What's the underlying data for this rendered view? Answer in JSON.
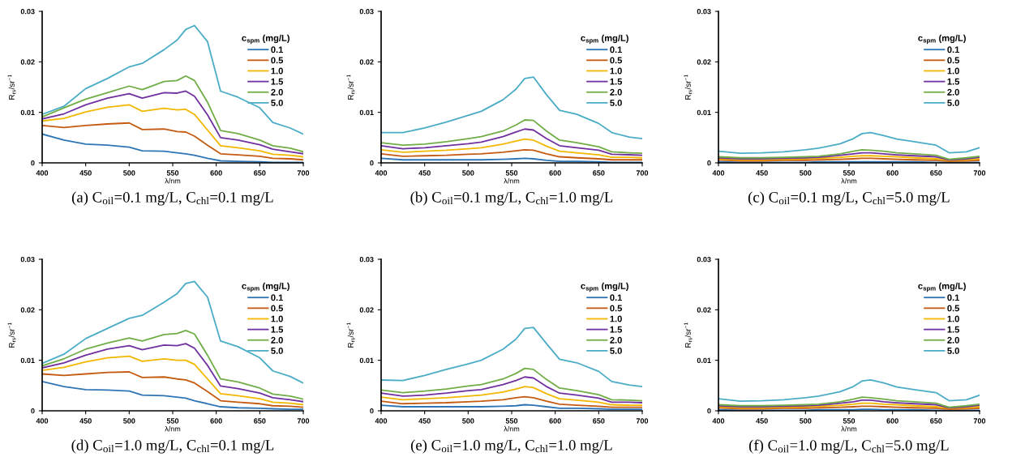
{
  "chart_data": [
    {
      "type": "line",
      "title": "(a) C$_{oil}$=0.1 mg/L, C$_{chl}$=0.1 mg/L",
      "xlabel": "λ/nm",
      "ylabel": "R$_{rs}$/sr$^{−1}$",
      "legend_title": "c$_{spm}$ (mg/L)",
      "legend": "top right",
      "xlim": [
        400,
        700
      ],
      "ylim": [
        0,
        0.03
      ],
      "xticks": [
        400,
        450,
        500,
        550,
        600,
        650,
        700
      ],
      "yticks": [
        0,
        0.01,
        0.02,
        0.03
      ],
      "x": [
        400,
        425,
        450,
        475,
        500,
        515,
        540,
        555,
        565,
        575,
        590,
        605,
        625,
        650,
        665,
        685,
        700
      ],
      "series": [
        {
          "name": "0.1",
          "color": "#2e75b6",
          "values": [
            0.0057,
            0.0045,
            0.0037,
            0.0035,
            0.0031,
            0.0024,
            0.0023,
            0.002,
            0.0018,
            0.0015,
            0.0009,
            0.0004,
            0.0003,
            0.0002,
            0.0001,
            0.0001,
            0.0001
          ]
        },
        {
          "name": "0.5",
          "color": "#c55a11",
          "values": [
            0.0074,
            0.007,
            0.0074,
            0.0077,
            0.0079,
            0.0066,
            0.0067,
            0.0062,
            0.0061,
            0.0053,
            0.0035,
            0.0018,
            0.0016,
            0.0013,
            0.0009,
            0.0008,
            0.0006
          ]
        },
        {
          "name": "1.0",
          "color": "#f2b800",
          "values": [
            0.0083,
            0.0088,
            0.0101,
            0.011,
            0.0115,
            0.0102,
            0.0108,
            0.0105,
            0.0106,
            0.0096,
            0.0065,
            0.0034,
            0.003,
            0.0024,
            0.0017,
            0.0015,
            0.0012
          ]
        },
        {
          "name": "1.5",
          "color": "#7030a0",
          "values": [
            0.0087,
            0.0097,
            0.0115,
            0.0128,
            0.0137,
            0.0128,
            0.0139,
            0.0138,
            0.0142,
            0.0132,
            0.0095,
            0.005,
            0.0045,
            0.0036,
            0.0027,
            0.0022,
            0.0018
          ]
        },
        {
          "name": "2.0",
          "color": "#70ad47",
          "values": [
            0.0091,
            0.0109,
            0.0126,
            0.0139,
            0.0152,
            0.0145,
            0.0161,
            0.0163,
            0.0172,
            0.0163,
            0.012,
            0.0064,
            0.0058,
            0.0045,
            0.0034,
            0.0029,
            0.0022
          ]
        },
        {
          "name": "5.0",
          "color": "#4bacc6",
          "values": [
            0.0096,
            0.0112,
            0.0147,
            0.0167,
            0.019,
            0.0197,
            0.0224,
            0.0243,
            0.0264,
            0.0272,
            0.024,
            0.0142,
            0.013,
            0.0109,
            0.008,
            0.0069,
            0.0057
          ]
        }
      ]
    },
    {
      "type": "line",
      "title": "(b) C$_{oil}$=0.1 mg/L, C$_{chl}$=1.0 mg/L",
      "xlabel": "λ/nm",
      "ylabel": "R$_{rs}$/sr$^{−1}$",
      "legend_title": "c$_{spm}$ (mg/L)",
      "legend": "top right",
      "xlim": [
        400,
        700
      ],
      "ylim": [
        0,
        0.03
      ],
      "xticks": [
        400,
        450,
        500,
        550,
        600,
        650,
        700
      ],
      "yticks": [
        0,
        0.01,
        0.02,
        0.03
      ],
      "x": [
        400,
        425,
        450,
        475,
        500,
        515,
        540,
        555,
        565,
        575,
        590,
        605,
        625,
        650,
        665,
        685,
        700
      ],
      "series": [
        {
          "name": "0.1",
          "color": "#2e75b6",
          "values": [
            0.0009,
            0.0006,
            0.0006,
            0.0006,
            0.0006,
            0.0006,
            0.0007,
            0.0008,
            0.0009,
            0.0008,
            0.0005,
            0.0003,
            0.0003,
            0.0002,
            0.0001,
            0.0001,
            0.0001
          ]
        },
        {
          "name": "0.5",
          "color": "#c55a11",
          "values": [
            0.0018,
            0.0013,
            0.0014,
            0.0015,
            0.0017,
            0.0018,
            0.0021,
            0.0024,
            0.0026,
            0.0025,
            0.0018,
            0.0012,
            0.001,
            0.0008,
            0.0006,
            0.0006,
            0.0006
          ]
        },
        {
          "name": "1.0",
          "color": "#f2b800",
          "values": [
            0.0026,
            0.0021,
            0.0023,
            0.0025,
            0.0028,
            0.003,
            0.0037,
            0.0043,
            0.0047,
            0.0045,
            0.0033,
            0.0023,
            0.002,
            0.0016,
            0.0011,
            0.0011,
            0.001
          ]
        },
        {
          "name": "1.5",
          "color": "#7030a0",
          "values": [
            0.0034,
            0.0028,
            0.003,
            0.0034,
            0.0038,
            0.0041,
            0.0052,
            0.0061,
            0.0067,
            0.0065,
            0.0048,
            0.0034,
            0.003,
            0.0025,
            0.0017,
            0.0016,
            0.0015
          ]
        },
        {
          "name": "2.0",
          "color": "#70ad47",
          "values": [
            0.004,
            0.0035,
            0.0037,
            0.0042,
            0.0048,
            0.0052,
            0.0063,
            0.0075,
            0.0085,
            0.0084,
            0.0063,
            0.0045,
            0.004,
            0.0032,
            0.0022,
            0.002,
            0.0019
          ]
        },
        {
          "name": "5.0",
          "color": "#4bacc6",
          "values": [
            0.006,
            0.006,
            0.0069,
            0.0081,
            0.0094,
            0.0102,
            0.0125,
            0.0146,
            0.0167,
            0.017,
            0.0135,
            0.0104,
            0.0096,
            0.0078,
            0.006,
            0.0051,
            0.0048
          ]
        }
      ]
    },
    {
      "type": "line",
      "title": "(c) C$_{oil}$=0.1 mg/L, C$_{chl}$=5.0 mg/L",
      "xlabel": "λ/nm",
      "ylabel": "R$_{rs}$/sr$^{−1}$",
      "legend_title": "c$_{spm}$ (mg/L)",
      "legend": "top right",
      "xlim": [
        400,
        700
      ],
      "ylim": [
        0,
        0.03
      ],
      "xticks": [
        400,
        450,
        500,
        550,
        600,
        650,
        700
      ],
      "yticks": [
        0,
        0.01,
        0.02,
        0.03
      ],
      "x": [
        400,
        425,
        450,
        475,
        500,
        515,
        540,
        555,
        565,
        575,
        590,
        605,
        625,
        650,
        665,
        685,
        700
      ],
      "series": [
        {
          "name": "0.1",
          "color": "#2e75b6",
          "values": [
            0.0002,
            0.0001,
            0.0001,
            0.0001,
            0.0001,
            0.0002,
            0.0002,
            0.0002,
            0.0002,
            0.0002,
            0.0002,
            0.0002,
            0.0002,
            0.0001,
            0.0001,
            0.0001,
            0.0001
          ]
        },
        {
          "name": "0.5",
          "color": "#c55a11",
          "values": [
            0.0006,
            0.0004,
            0.0004,
            0.0005,
            0.0005,
            0.0006,
            0.0007,
            0.0008,
            0.0009,
            0.0009,
            0.0008,
            0.0007,
            0.0006,
            0.0005,
            0.0003,
            0.0004,
            0.0005
          ]
        },
        {
          "name": "1.0",
          "color": "#f2b800",
          "values": [
            0.0008,
            0.0006,
            0.0006,
            0.0007,
            0.0008,
            0.0009,
            0.0011,
            0.0013,
            0.0014,
            0.0014,
            0.0013,
            0.0012,
            0.001,
            0.0008,
            0.0005,
            0.0006,
            0.0008
          ]
        },
        {
          "name": "1.5",
          "color": "#7030a0",
          "values": [
            0.001,
            0.0008,
            0.0008,
            0.0009,
            0.001,
            0.0011,
            0.0015,
            0.0018,
            0.002,
            0.002,
            0.0018,
            0.0016,
            0.0014,
            0.0012,
            0.0006,
            0.0008,
            0.0011
          ]
        },
        {
          "name": "2.0",
          "color": "#70ad47",
          "values": [
            0.0012,
            0.001,
            0.001,
            0.0011,
            0.0012,
            0.0013,
            0.0018,
            0.0023,
            0.0026,
            0.0025,
            0.0023,
            0.002,
            0.0018,
            0.0015,
            0.0007,
            0.001,
            0.0013
          ]
        },
        {
          "name": "5.0",
          "color": "#4bacc6",
          "values": [
            0.0023,
            0.0019,
            0.002,
            0.0022,
            0.0026,
            0.0029,
            0.0038,
            0.0048,
            0.0058,
            0.006,
            0.0054,
            0.0047,
            0.0042,
            0.0035,
            0.002,
            0.0022,
            0.003
          ]
        }
      ]
    },
    {
      "type": "line",
      "title": "(d) C$_{oil}$=1.0 mg/L, C$_{chl}$=0.1 mg/L",
      "xlabel": "λ/nm",
      "ylabel": "R$_{rs}$/sr$^{−1}$",
      "legend_title": "c$_{spm}$ (mg/L)",
      "legend": "top right",
      "xlim": [
        400,
        700
      ],
      "ylim": [
        0,
        0.03
      ],
      "xticks": [
        400,
        450,
        500,
        550,
        600,
        650,
        700
      ],
      "yticks": [
        0,
        0.01,
        0.02,
        0.03
      ],
      "x": [
        400,
        425,
        450,
        475,
        500,
        515,
        540,
        555,
        565,
        575,
        590,
        605,
        625,
        650,
        665,
        685,
        700
      ],
      "series": [
        {
          "name": "0.1",
          "color": "#2e75b6",
          "values": [
            0.0058,
            0.0048,
            0.0042,
            0.0041,
            0.0039,
            0.0031,
            0.003,
            0.0027,
            0.0025,
            0.002,
            0.0014,
            0.0008,
            0.0006,
            0.0005,
            0.0004,
            0.0003,
            0.0003
          ]
        },
        {
          "name": "0.5",
          "color": "#c55a11",
          "values": [
            0.0073,
            0.007,
            0.0073,
            0.0076,
            0.0077,
            0.0066,
            0.0067,
            0.0063,
            0.0061,
            0.0055,
            0.0038,
            0.002,
            0.0017,
            0.0014,
            0.001,
            0.0009,
            0.0007
          ]
        },
        {
          "name": "1.0",
          "color": "#f2b800",
          "values": [
            0.008,
            0.0086,
            0.0097,
            0.0105,
            0.0108,
            0.0098,
            0.0103,
            0.01,
            0.01,
            0.0092,
            0.0063,
            0.0034,
            0.003,
            0.0024,
            0.0017,
            0.0015,
            0.0012
          ]
        },
        {
          "name": "1.5",
          "color": "#7030a0",
          "values": [
            0.0085,
            0.0095,
            0.011,
            0.0122,
            0.0129,
            0.0121,
            0.013,
            0.0129,
            0.0133,
            0.0124,
            0.009,
            0.0049,
            0.0044,
            0.0035,
            0.0026,
            0.0022,
            0.0018
          ]
        },
        {
          "name": "2.0",
          "color": "#70ad47",
          "values": [
            0.0089,
            0.0103,
            0.0122,
            0.0134,
            0.0144,
            0.0138,
            0.0151,
            0.0153,
            0.0159,
            0.0152,
            0.011,
            0.0063,
            0.0057,
            0.0045,
            0.0033,
            0.0029,
            0.0023
          ]
        },
        {
          "name": "5.0",
          "color": "#4bacc6",
          "values": [
            0.0094,
            0.0112,
            0.0143,
            0.0163,
            0.0183,
            0.0189,
            0.0215,
            0.0232,
            0.0252,
            0.0256,
            0.0225,
            0.0138,
            0.0127,
            0.0105,
            0.0079,
            0.0068,
            0.0055
          ]
        }
      ]
    },
    {
      "type": "line",
      "title": "(e) C$_{oil}$=1.0 mg/L, C$_{chl}$=1.0 mg/L",
      "xlabel": "λ/nm",
      "ylabel": "R$_{rs}$/sr$^{−1}$",
      "legend_title": "c$_{spm}$ (mg/L)",
      "legend": "top right",
      "xlim": [
        400,
        700
      ],
      "ylim": [
        0,
        0.03
      ],
      "xticks": [
        400,
        450,
        500,
        550,
        600,
        650,
        700
      ],
      "yticks": [
        0,
        0.01,
        0.02,
        0.03
      ],
      "x": [
        400,
        425,
        450,
        475,
        500,
        515,
        540,
        555,
        565,
        575,
        590,
        605,
        625,
        650,
        665,
        685,
        700
      ],
      "series": [
        {
          "name": "0.1",
          "color": "#2e75b6",
          "values": [
            0.0011,
            0.0008,
            0.0008,
            0.0008,
            0.0008,
            0.0008,
            0.0009,
            0.001,
            0.0012,
            0.0011,
            0.0008,
            0.0005,
            0.0005,
            0.0004,
            0.0003,
            0.0003,
            0.0003
          ]
        },
        {
          "name": "0.5",
          "color": "#c55a11",
          "values": [
            0.0019,
            0.0014,
            0.0015,
            0.0016,
            0.0018,
            0.0019,
            0.0022,
            0.0026,
            0.0028,
            0.0026,
            0.0019,
            0.0013,
            0.0011,
            0.0009,
            0.0007,
            0.0007,
            0.0007
          ]
        },
        {
          "name": "1.0",
          "color": "#f2b800",
          "values": [
            0.0027,
            0.0022,
            0.0024,
            0.0026,
            0.0029,
            0.0031,
            0.0037,
            0.0043,
            0.0048,
            0.0046,
            0.0034,
            0.0024,
            0.0021,
            0.0017,
            0.0012,
            0.0011,
            0.0011
          ]
        },
        {
          "name": "1.5",
          "color": "#7030a0",
          "values": [
            0.0035,
            0.0029,
            0.0031,
            0.0035,
            0.004,
            0.0042,
            0.0052,
            0.006,
            0.0067,
            0.0065,
            0.0048,
            0.0035,
            0.0031,
            0.0025,
            0.0017,
            0.0017,
            0.0016
          ]
        },
        {
          "name": "2.0",
          "color": "#70ad47",
          "values": [
            0.0041,
            0.0036,
            0.0039,
            0.0043,
            0.0049,
            0.0052,
            0.0063,
            0.0074,
            0.0084,
            0.0082,
            0.0062,
            0.0045,
            0.004,
            0.0032,
            0.0022,
            0.0021,
            0.002
          ]
        },
        {
          "name": "5.0",
          "color": "#4bacc6",
          "values": [
            0.0061,
            0.006,
            0.007,
            0.0082,
            0.0093,
            0.01,
            0.0122,
            0.0142,
            0.0163,
            0.0165,
            0.0133,
            0.0102,
            0.0095,
            0.0078,
            0.0058,
            0.0051,
            0.0048
          ]
        }
      ]
    },
    {
      "type": "line",
      "title": "(f) C$_{oil}$=1.0 mg/L, C$_{chl}$=5.0 mg/L",
      "xlabel": "λ/nm",
      "ylabel": "R$_{rs}$/sr$^{−1}$",
      "legend_title": "c$_{spm}$ (mg/L)",
      "legend": "top right",
      "xlim": [
        400,
        700
      ],
      "ylim": [
        0,
        0.03
      ],
      "xticks": [
        400,
        450,
        500,
        550,
        600,
        650,
        700
      ],
      "yticks": [
        0,
        0.01,
        0.02,
        0.03
      ],
      "x": [
        400,
        425,
        450,
        475,
        500,
        515,
        540,
        555,
        565,
        575,
        590,
        605,
        625,
        650,
        665,
        685,
        700
      ],
      "series": [
        {
          "name": "0.1",
          "color": "#2e75b6",
          "values": [
            0.0002,
            0.0001,
            0.0001,
            0.0001,
            0.0001,
            0.0002,
            0.0002,
            0.0002,
            0.0003,
            0.0003,
            0.0002,
            0.0002,
            0.0002,
            0.0001,
            0.0001,
            0.0001,
            0.0001
          ]
        },
        {
          "name": "0.5",
          "color": "#c55a11",
          "values": [
            0.0006,
            0.0004,
            0.0004,
            0.0005,
            0.0005,
            0.0006,
            0.0007,
            0.0008,
            0.0009,
            0.0009,
            0.0008,
            0.0007,
            0.0006,
            0.0005,
            0.0003,
            0.0004,
            0.0005
          ]
        },
        {
          "name": "1.0",
          "color": "#f2b800",
          "values": [
            0.0008,
            0.0006,
            0.0006,
            0.0007,
            0.0008,
            0.0009,
            0.0011,
            0.0013,
            0.0015,
            0.0015,
            0.0013,
            0.0012,
            0.001,
            0.0008,
            0.0005,
            0.0006,
            0.0008
          ]
        },
        {
          "name": "1.5",
          "color": "#7030a0",
          "values": [
            0.001,
            0.0008,
            0.0008,
            0.0009,
            0.001,
            0.0011,
            0.0015,
            0.0018,
            0.0021,
            0.0021,
            0.0018,
            0.0016,
            0.0014,
            0.0012,
            0.0006,
            0.0008,
            0.0011
          ]
        },
        {
          "name": "2.0",
          "color": "#70ad47",
          "values": [
            0.0012,
            0.001,
            0.001,
            0.0011,
            0.0012,
            0.0013,
            0.0018,
            0.0023,
            0.0027,
            0.0026,
            0.0023,
            0.002,
            0.0018,
            0.0015,
            0.0007,
            0.001,
            0.0013
          ]
        },
        {
          "name": "5.0",
          "color": "#4bacc6",
          "values": [
            0.0024,
            0.0019,
            0.002,
            0.0022,
            0.0026,
            0.0029,
            0.0038,
            0.0048,
            0.0059,
            0.0061,
            0.0055,
            0.0047,
            0.0042,
            0.0036,
            0.002,
            0.0022,
            0.0031
          ]
        }
      ]
    }
  ]
}
